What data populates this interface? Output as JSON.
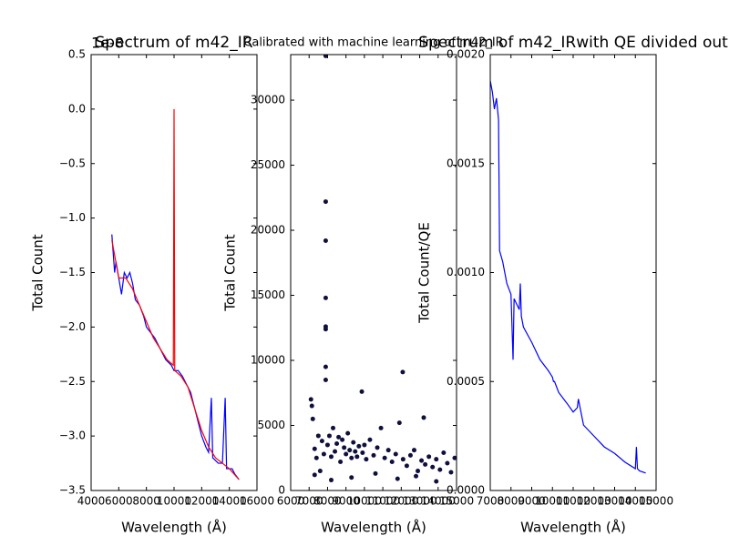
{
  "chart_data": [
    {
      "type": "line",
      "title": "Spectrum of m42_IR",
      "offset_text": "1e-8",
      "xlabel": "Wavelength (Å)",
      "ylabel": "Total Count",
      "xlim": [
        4000,
        16000
      ],
      "xticks": [
        4000,
        6000,
        8000,
        10000,
        12000,
        14000,
        16000
      ],
      "ylim": [
        -3.5,
        0.5
      ],
      "yticks": [
        {
          "value": -3.5,
          "label": "−3.5"
        },
        {
          "value": -3.0,
          "label": "−3.0"
        },
        {
          "value": -2.5,
          "label": "−2.5"
        },
        {
          "value": -2.0,
          "label": "−2.0"
        },
        {
          "value": -1.5,
          "label": "−1.5"
        },
        {
          "value": -1.0,
          "label": "−1.0"
        },
        {
          "value": -0.5,
          "label": "−0.5"
        },
        {
          "value": 0.0,
          "label": "0.0"
        },
        {
          "value": 0.5,
          "label": "0.5"
        }
      ],
      "grid": false,
      "series": [
        {
          "color": "#0000ff",
          "x": [
            5500,
            5700,
            5800,
            6000,
            6200,
            6400,
            6600,
            6800,
            7000,
            7200,
            7500,
            7800,
            8000,
            8300,
            8600,
            9000,
            9400,
            9800,
            10000,
            10300,
            10600,
            11000,
            11200,
            11500,
            11800,
            12000,
            12300,
            12500,
            12700,
            12800,
            13200,
            13500,
            13700,
            13800,
            14200,
            14400,
            14700
          ],
          "values": [
            -1.15,
            -1.5,
            -1.4,
            -1.55,
            -1.7,
            -1.5,
            -1.55,
            -1.5,
            -1.6,
            -1.75,
            -1.8,
            -1.9,
            -2.0,
            -2.05,
            -2.1,
            -2.2,
            -2.3,
            -2.35,
            -2.4,
            -2.4,
            -2.45,
            -2.55,
            -2.6,
            -2.75,
            -2.9,
            -3.0,
            -3.1,
            -3.15,
            -2.65,
            -3.2,
            -3.25,
            -3.25,
            -2.65,
            -3.3,
            -3.3,
            -3.35,
            -3.4
          ]
        },
        {
          "color": "#ff0000",
          "x": [
            5500,
            6000,
            6500,
            7000,
            7500,
            8000,
            8500,
            9000,
            9500,
            9950,
            10000,
            10050,
            10500,
            11000,
            11500,
            12000,
            12500,
            13000,
            13500,
            14000,
            14700
          ],
          "values": [
            -1.2,
            -1.55,
            -1.55,
            -1.65,
            -1.8,
            -1.95,
            -2.1,
            -2.2,
            -2.3,
            -2.35,
            0.0,
            -2.4,
            -2.45,
            -2.55,
            -2.75,
            -2.95,
            -3.1,
            -3.2,
            -3.25,
            -3.3,
            -3.4
          ]
        }
      ]
    },
    {
      "type": "scatter",
      "title": "Calibrated with machine learning of m42_IR",
      "xlabel": "Wavelength (Å)",
      "ylabel": "Total Count",
      "xlim": [
        6000,
        15000
      ],
      "xticks": [
        6000,
        7000,
        8000,
        9000,
        10000,
        11000,
        12000,
        13000,
        14000,
        15000
      ],
      "ylim": [
        0,
        33500
      ],
      "yticks": [
        0,
        5000,
        10000,
        15000,
        20000,
        25000,
        30000
      ],
      "grid": false,
      "color": "#10103c",
      "x": [
        7100,
        7150,
        7200,
        7300,
        7400,
        7500,
        7600,
        7700,
        7800,
        7900,
        7900,
        7900,
        7900,
        7900,
        7900,
        7900,
        7900,
        8000,
        8100,
        8200,
        8300,
        8400,
        8500,
        8600,
        8700,
        8800,
        8900,
        9000,
        9100,
        9200,
        9300,
        9400,
        9500,
        9600,
        9700,
        9860,
        9900,
        10000,
        10100,
        10300,
        10500,
        10700,
        10900,
        11100,
        11300,
        11500,
        11700,
        11900,
        12080,
        12100,
        12300,
        12500,
        12700,
        12900,
        13100,
        13220,
        13300,
        13500,
        13700,
        13900,
        14100,
        14300,
        14500,
        14700,
        14900,
        7300,
        8200,
        9300,
        10600,
        11800,
        12800,
        13900
      ],
      "y": [
        7000,
        6500,
        5500,
        3200,
        2500,
        4200,
        1500,
        3800,
        2800,
        33400,
        22200,
        19200,
        14800,
        12600,
        12400,
        9500,
        8500,
        3500,
        4200,
        2600,
        4800,
        3000,
        3600,
        4100,
        2200,
        3900,
        3300,
        2800,
        4400,
        3100,
        2500,
        3700,
        3000,
        2600,
        3400,
        7600,
        2900,
        3500,
        2400,
        3900,
        2700,
        3300,
        4800,
        2500,
        3100,
        2200,
        2800,
        5200,
        9100,
        2400,
        1900,
        2700,
        3100,
        1500,
        2300,
        5600,
        2000,
        2600,
        1800,
        2400,
        1600,
        2900,
        2100,
        1400,
        2500,
        1200,
        800,
        1000,
        1300,
        900,
        1100,
        700
      ]
    },
    {
      "type": "line",
      "title": "Spectrum of m42_IRwith QE divided out",
      "xlabel": "Wavelength (Å)",
      "ylabel": "Total Count/QE",
      "xlim": [
        7000,
        15000
      ],
      "xticks": [
        7000,
        8000,
        9000,
        10000,
        11000,
        12000,
        13000,
        14000,
        15000
      ],
      "ylim": [
        0,
        0.002
      ],
      "yticks": [
        {
          "value": 0,
          "label": "0.0000"
        },
        {
          "value": 0.0005,
          "label": "0.0005"
        },
        {
          "value": 0.001,
          "label": "0.0010"
        },
        {
          "value": 0.0015,
          "label": "0.0015"
        },
        {
          "value": 0.002,
          "label": "0.0020"
        }
      ],
      "grid": false,
      "series": [
        {
          "color": "#0000ff",
          "x": [
            7000,
            7100,
            7200,
            7300,
            7400,
            7450,
            7600,
            7800,
            8000,
            8100,
            8150,
            8400,
            8450,
            8500,
            8600,
            9000,
            9400,
            9800,
            10000,
            10050,
            10100,
            10300,
            10700,
            11000,
            11200,
            11250,
            11500,
            12000,
            12500,
            13000,
            13500,
            14000,
            14050,
            14100,
            14200,
            14500
          ],
          "values": [
            0.00188,
            0.00183,
            0.00175,
            0.0018,
            0.0017,
            0.0011,
            0.00105,
            0.00095,
            0.0009,
            0.0006,
            0.00088,
            0.00083,
            0.00095,
            0.0008,
            0.00075,
            0.00068,
            0.0006,
            0.00055,
            0.00052,
            0.0005,
            0.0005,
            0.00045,
            0.0004,
            0.00036,
            0.00038,
            0.00042,
            0.0003,
            0.00025,
            0.0002,
            0.00017,
            0.00013,
            0.0001,
            0.0002,
            0.0001,
            9e-05,
            8e-05
          ]
        }
      ]
    }
  ]
}
